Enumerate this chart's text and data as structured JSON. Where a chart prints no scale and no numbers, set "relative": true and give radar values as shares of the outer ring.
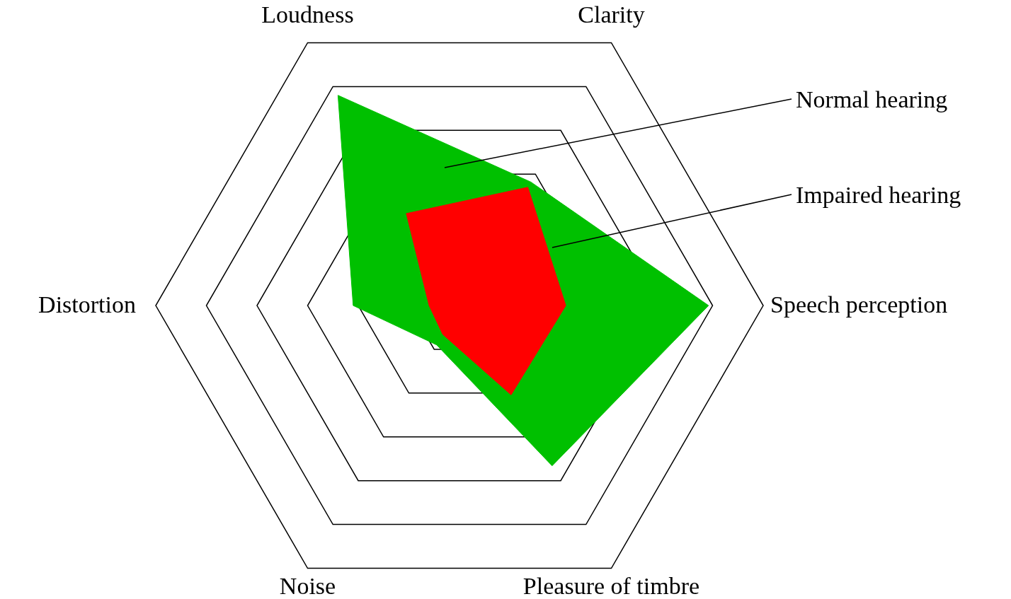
{
  "chart_data": {
    "type": "radar",
    "relative": true,
    "categories": [
      "Loudness",
      "Clarity",
      "Speech perception",
      "Pleasure of timbre",
      "Noise",
      "Distortion"
    ],
    "series": [
      {
        "name": "Normal hearing",
        "color": "#00c000",
        "values": [
          0.8,
          0.47,
          0.82,
          0.61,
          0.15,
          0.35
        ]
      },
      {
        "name": "Impaired hearing",
        "color": "#ff0000",
        "values": [
          0.35,
          0.45,
          0.35,
          0.34,
          0.11,
          0.1
        ]
      }
    ],
    "grid": true,
    "legend": false
  }
}
